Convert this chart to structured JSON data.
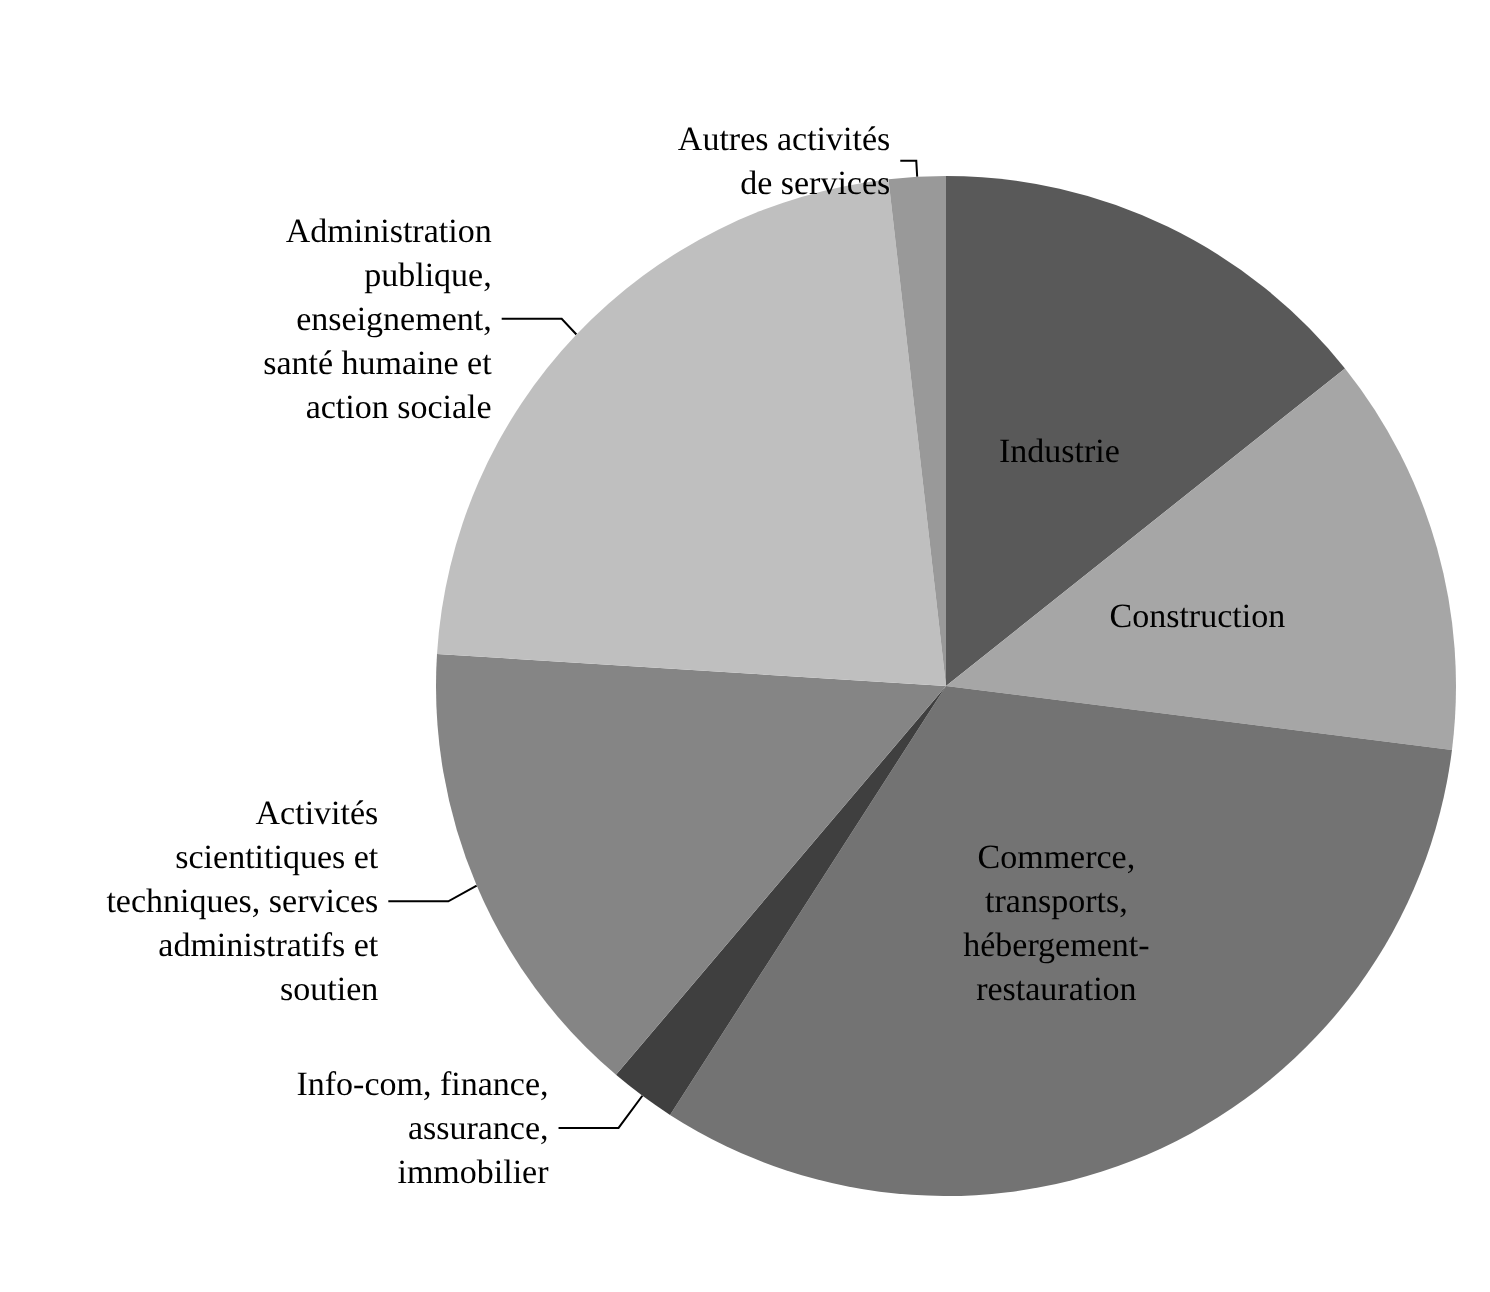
{
  "chart_data": {
    "type": "pie",
    "categories": [
      "Industrie",
      "Construction",
      "Commerce,\ntransports,\nhébergement-\nrestauration",
      "Info-com, finance,\nassurance,\nimmobilier",
      "Activités\nscientitiques et\ntechniques, services\nadministratifs et\nsoutien",
      "Administration\npublique,\nenseignement,\nsanté humaine et\naction sociale",
      "Autres activités\nde services"
    ],
    "values": [
      14.3,
      12.7,
      32.1,
      2.1,
      14.8,
      22.2,
      1.8
    ],
    "colors": [
      "#595959",
      "#a6a6a6",
      "#737373",
      "#3f3f3f",
      "#858585",
      "#bfbfbf",
      "#999999"
    ],
    "legend": false
  }
}
